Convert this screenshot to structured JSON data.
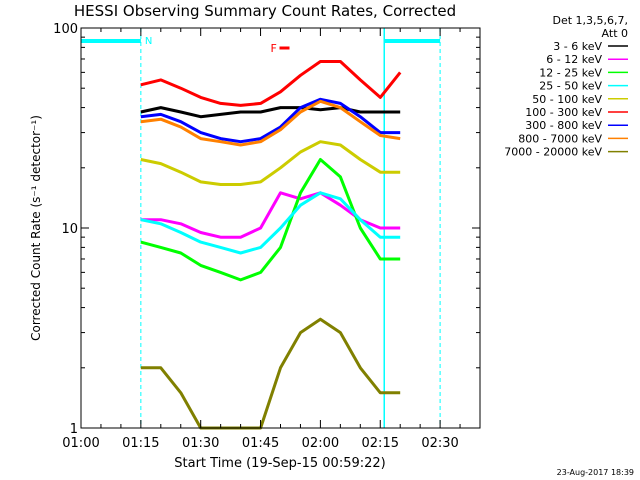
{
  "chart_data": {
    "type": "line",
    "title": "HESSI Observing Summary Count Rates, Corrected",
    "xlabel": "Start Time (19-Sep-15 00:59:22)",
    "ylabel": "Corrected Count Rate (s⁻¹ detector⁻¹)",
    "y_scale": "log",
    "xlim": [
      "01:00",
      "02:40"
    ],
    "ylim": [
      1,
      100
    ],
    "x_ticks": [
      "01:00",
      "01:15",
      "01:30",
      "01:45",
      "02:00",
      "02:15",
      "02:30"
    ],
    "y_ticks": [
      "1",
      "10",
      "100"
    ],
    "grid": false,
    "legend_position": "right",
    "legend_header": [
      "Det 1,3,5,6,7,",
      "Att 0"
    ],
    "footer_date": "23-Aug-2017 18:39",
    "markers": {
      "night_label": "N",
      "flare_label": "F",
      "night_segments": [
        [
          "01:00",
          "01:15"
        ],
        [
          "02:16",
          "02:30"
        ]
      ],
      "dashed_lines": [
        "01:15",
        "02:30"
      ],
      "solid_lines": [
        "02:16"
      ],
      "flare_time": "01:51"
    },
    "x_times": [
      "01:15",
      "01:20",
      "01:25",
      "01:30",
      "01:35",
      "01:40",
      "01:45",
      "01:50",
      "01:55",
      "02:00",
      "02:05",
      "02:10",
      "02:15",
      "02:20"
    ],
    "series": [
      {
        "name": "3 - 6 keV",
        "color": "#000000",
        "values": [
          38,
          40,
          38,
          36,
          37,
          38,
          38,
          40,
          40,
          39,
          40,
          38,
          38,
          38
        ]
      },
      {
        "name": "6 - 12 keV",
        "color": "#ff00ff",
        "values": [
          11,
          11,
          10.5,
          9.5,
          9,
          9,
          10,
          15,
          14,
          15,
          13,
          11,
          10,
          10
        ]
      },
      {
        "name": "12 - 25 keV",
        "color": "#00ff00",
        "values": [
          8.5,
          8,
          7.5,
          6.5,
          6,
          5.5,
          6,
          8,
          15,
          22,
          18,
          10,
          7,
          7
        ]
      },
      {
        "name": "25 - 50 keV",
        "color": "#00ffff",
        "values": [
          11,
          10.5,
          9.5,
          8.5,
          8,
          7.5,
          8,
          10,
          13,
          15,
          14,
          11,
          9,
          9
        ]
      },
      {
        "name": "50 - 100 keV",
        "color": "#cccc00",
        "values": [
          22,
          21,
          19,
          17,
          16.5,
          16.5,
          17,
          20,
          24,
          27,
          26,
          22,
          19,
          19
        ]
      },
      {
        "name": "100 - 300 keV",
        "color": "#ff0000",
        "values": [
          52,
          55,
          50,
          45,
          42,
          41,
          42,
          48,
          58,
          68,
          68,
          55,
          45,
          60
        ]
      },
      {
        "name": "300 - 800 keV",
        "color": "#0000ff",
        "values": [
          36,
          37,
          34,
          30,
          28,
          27,
          28,
          32,
          40,
          44,
          42,
          36,
          30,
          30
        ]
      },
      {
        "name": "800 - 7000 keV",
        "color": "#ff8000",
        "values": [
          34,
          35,
          32,
          28,
          27,
          26,
          27,
          31,
          38,
          43,
          40,
          34,
          29,
          28
        ]
      },
      {
        "name": "7000 - 20000 keV",
        "color": "#808000",
        "values": [
          2,
          2,
          1.5,
          1,
          1,
          1,
          1,
          2,
          3,
          3.5,
          3,
          2,
          1.5,
          1.5
        ]
      }
    ]
  }
}
